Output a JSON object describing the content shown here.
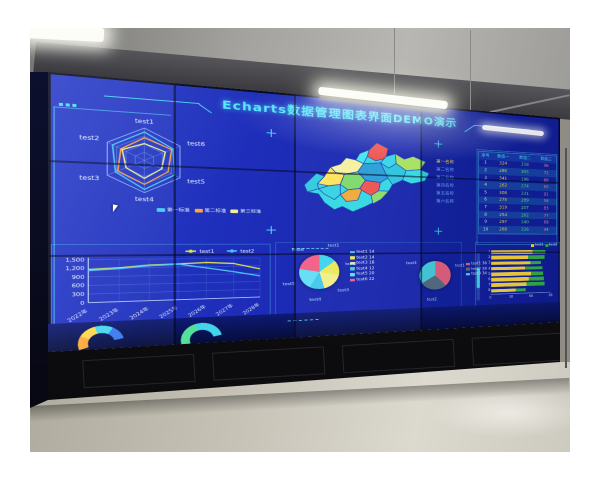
{
  "colors": {
    "screen_blue": "#1b2ab4",
    "accent_cyan": "#45e0f5",
    "title_cyan": "#52e8ff"
  },
  "dashboard": {
    "title": "Echarts数据管理图表界面DEMO演示",
    "rank_list": {
      "items": [
        {
          "label": "第一名称",
          "highlight": true
        },
        {
          "label": "第二名称",
          "highlight": false
        },
        {
          "label": "第三名称",
          "highlight": false
        },
        {
          "label": "第四名称",
          "highlight": false
        },
        {
          "label": "第五名称",
          "highlight": false
        },
        {
          "label": "第六名称",
          "highlight": false
        }
      ]
    },
    "data_table": {
      "headers": [
        "序号",
        "数值一",
        "数值二",
        "数值三"
      ],
      "rows": [
        [
          1,
          324,
          218,
          96
        ],
        [
          2,
          286,
          305,
          72
        ],
        [
          3,
          341,
          196,
          88
        ],
        [
          4,
          262,
          274,
          65
        ],
        [
          5,
          308,
          231,
          91
        ],
        [
          6,
          275,
          289,
          58
        ],
        [
          7,
          319,
          207,
          83
        ],
        [
          8,
          254,
          262,
          77
        ],
        [
          9,
          297,
          240,
          69
        ],
        [
          10,
          268,
          226,
          94
        ]
      ]
    }
  },
  "chart_data": [
    {
      "type": "radar",
      "panel": "top-left",
      "max": 100,
      "axes": [
        "test1",
        "test6",
        "test5",
        "test4",
        "test3",
        "test2"
      ],
      "series": [
        {
          "name": "第一标准",
          "color": "#45c8f5",
          "values": [
            88,
            80,
            84,
            90,
            78,
            86
          ]
        },
        {
          "name": "第二标准",
          "color": "#ffa23e",
          "values": [
            70,
            76,
            66,
            74,
            72,
            64
          ]
        },
        {
          "name": "第三标准",
          "color": "#f3ef8e",
          "values": [
            52,
            58,
            48,
            56,
            50,
            60
          ]
        }
      ],
      "legend_position": "bottom"
    },
    {
      "type": "map",
      "panel": "top-center",
      "name": "province-map",
      "region_colors": [
        "#ef5350",
        "#45e8f0",
        "#a8e063",
        "#38d5e8",
        "#f4f1a0",
        "#2fc4de",
        "#2a9fd8",
        "#ffe45c",
        "#7fd96a",
        "#ef5350",
        "#f0a93c",
        "#38d2e2",
        "#8fdc6e",
        "#33cbe0"
      ]
    },
    {
      "type": "line",
      "panel": "bottom-left",
      "categories": [
        "2022年",
        "2023年",
        "2024年",
        "2025年",
        "2026年",
        "2027年",
        "2028年"
      ],
      "series": [
        {
          "name": "test1",
          "color": "#d9e54d",
          "values": [
            1150,
            1200,
            1280,
            1310,
            1350,
            1300,
            1080
          ]
        },
        {
          "name": "test2",
          "color": "#4ec3f5",
          "values": [
            1120,
            1170,
            1260,
            1300,
            1150,
            990,
            810
          ]
        }
      ],
      "ylim": [
        0,
        1500
      ],
      "yticks": [
        0,
        300,
        600,
        900,
        1200,
        1500
      ],
      "ytick_labels": [
        "0",
        "300",
        "600",
        "900",
        "1,200",
        "1,500"
      ],
      "grid": true,
      "legend_position": "top-right"
    },
    {
      "type": "pie",
      "panel": "bottom-center-left",
      "slices": [
        {
          "name": "test1",
          "value": 14,
          "color": "#3fd3ee"
        },
        {
          "name": "test2",
          "value": 14,
          "color": "#eae95b"
        },
        {
          "name": "test3",
          "value": 18,
          "color": "#f1ee8a"
        },
        {
          "name": "test4",
          "value": 12,
          "color": "#46c8ea"
        },
        {
          "name": "test5",
          "value": 20,
          "color": "#62dff5"
        },
        {
          "name": "test6",
          "value": 22,
          "color": "#f25f86"
        }
      ],
      "legend_position": "right"
    },
    {
      "type": "pie",
      "panel": "bottom-center-right",
      "slices": [
        {
          "name": "test1",
          "value": 38,
          "color": "#ef6484"
        },
        {
          "name": "test2",
          "value": 28,
          "color": "#5a7286"
        },
        {
          "name": "test3",
          "value": 34,
          "color": "#4cd7e8"
        }
      ],
      "legend_position": "right"
    },
    {
      "type": "bar-horizontal-stacked",
      "panel": "bottom-right",
      "categories": [
        "1",
        "2",
        "3",
        "4",
        "5",
        "6",
        "7",
        "8"
      ],
      "series": [
        {
          "name": "test1",
          "color": "#ffd83e",
          "values": [
            68,
            60,
            64,
            55,
            66,
            61,
            58,
            40
          ]
        },
        {
          "name": "test2",
          "color": "#37b34a",
          "values": [
            22,
            28,
            18,
            30,
            20,
            26,
            30,
            16
          ]
        }
      ],
      "xlim": [
        0,
        100
      ],
      "xticks": [
        "0",
        "30",
        "60",
        "90"
      ],
      "has_data_zoom_slider": true
    },
    {
      "type": "gauge-arcs",
      "panel": "footer",
      "arcs": [
        {
          "colors": [
            "#ffaa3c",
            "#ffd84d",
            "#45d8ef",
            "#3a7bf0"
          ]
        },
        {
          "colors": [
            "#52e09a",
            "#41d4ec"
          ]
        }
      ]
    }
  ]
}
